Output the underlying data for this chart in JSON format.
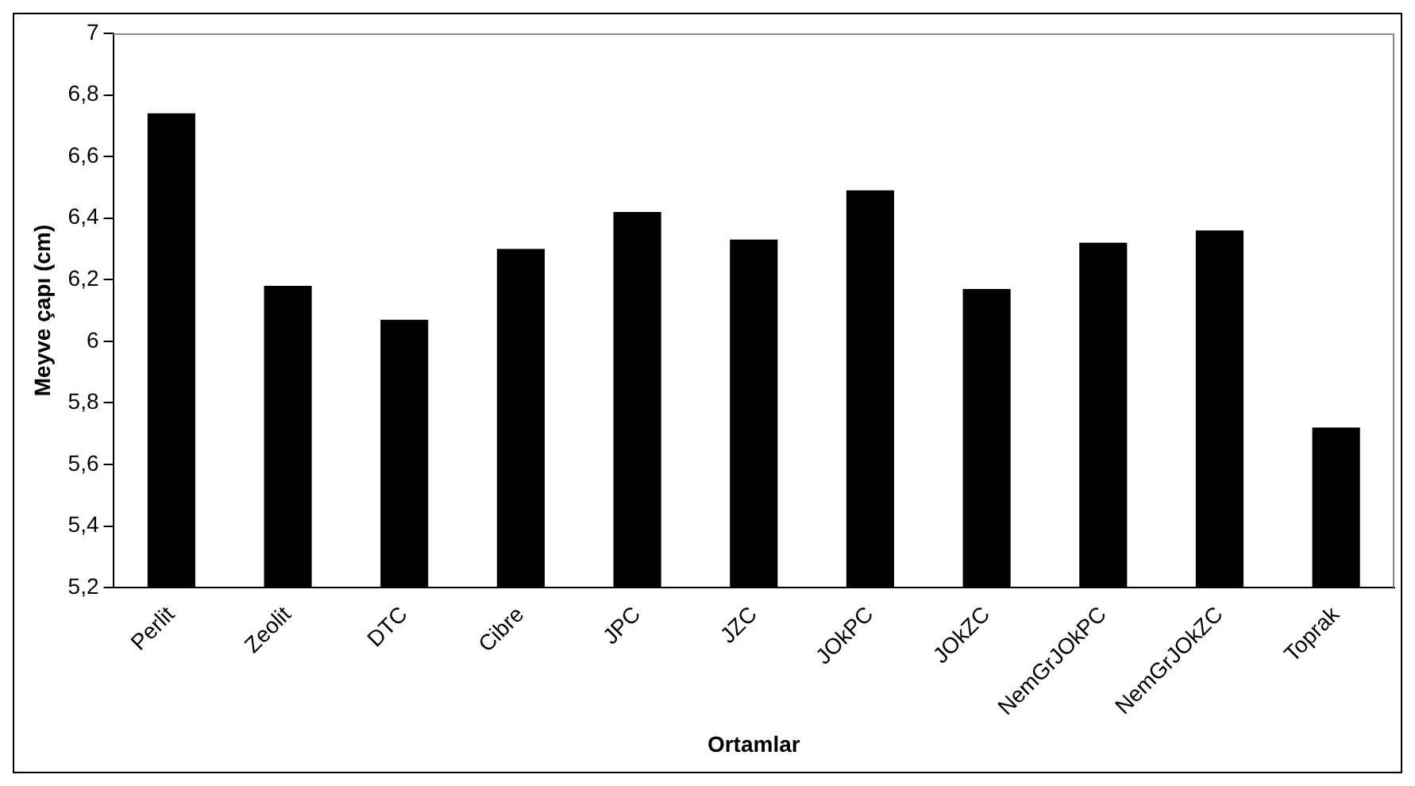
{
  "chart_data": {
    "type": "bar",
    "xlabel": "Ortamlar",
    "ylabel": "Meyve çapı (cm)",
    "categories": [
      "Perlit",
      "Zeolit",
      "DTC",
      "Cibre",
      "JPC",
      "JZC",
      "JOkPC",
      "JOkZC",
      "NemGrJOkPC",
      "NemGrJOkZC",
      "Toprak"
    ],
    "values": [
      6.74,
      6.18,
      6.07,
      6.3,
      6.42,
      6.33,
      6.49,
      6.17,
      6.32,
      6.36,
      5.72
    ],
    "color": "#000000",
    "ylim": [
      5.2,
      7
    ],
    "yticks": [
      {
        "value": 5.2,
        "label": "5,2"
      },
      {
        "value": 5.4,
        "label": "5,4"
      },
      {
        "value": 5.6,
        "label": "5,6"
      },
      {
        "value": 5.8,
        "label": "5,8"
      },
      {
        "value": 6,
        "label": "6"
      },
      {
        "value": 6.2,
        "label": "6,2"
      },
      {
        "value": 6.4,
        "label": "6,4"
      },
      {
        "value": 6.6,
        "label": "6,6"
      },
      {
        "value": 6.8,
        "label": "6,8"
      },
      {
        "value": 7,
        "label": "7"
      }
    ],
    "grid": false,
    "legend": false
  }
}
